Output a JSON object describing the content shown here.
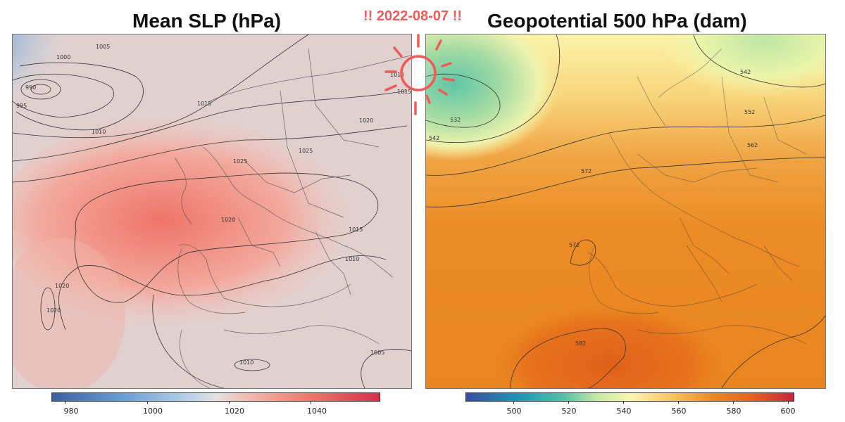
{
  "header": {
    "left_title": "Mean SLP (hPa)",
    "right_title": "Geopotential 500 hPa (dam)",
    "date_badge": "!! 2022-08-07 !!"
  },
  "left_map": {
    "variable": "Mean SLP",
    "unit": "hPa",
    "contour_labels": [
      "1005",
      "1000",
      "990",
      "995",
      "1015",
      "1010",
      "1020",
      "1025",
      "1025",
      "1020",
      "1015",
      "1010",
      "1020",
      "1020",
      "1010",
      "1005",
      "1015",
      "1010"
    ],
    "colorbar": {
      "ticks": [
        "980",
        "1000",
        "1020",
        "1040"
      ],
      "range": [
        975,
        1055
      ]
    },
    "colors": {
      "low": "#3b5fa0",
      "mid": "#e6e1e0",
      "high": "#d4304a"
    }
  },
  "right_map": {
    "variable": "Geopotential 500 hPa",
    "unit": "dam",
    "contour_labels": [
      "542",
      "532",
      "542",
      "552",
      "562",
      "572",
      "572",
      "582"
    ],
    "colorbar": {
      "ticks": [
        "500",
        "520",
        "540",
        "560",
        "580",
        "600"
      ],
      "range": [
        485,
        605
      ]
    },
    "colors": {
      "low": "#3a4d9c",
      "mid": "#fbf5b2",
      "high": "#c8243f"
    }
  },
  "decoration": {
    "icon": "sun-doodle-icon",
    "color": "#f05a57"
  }
}
